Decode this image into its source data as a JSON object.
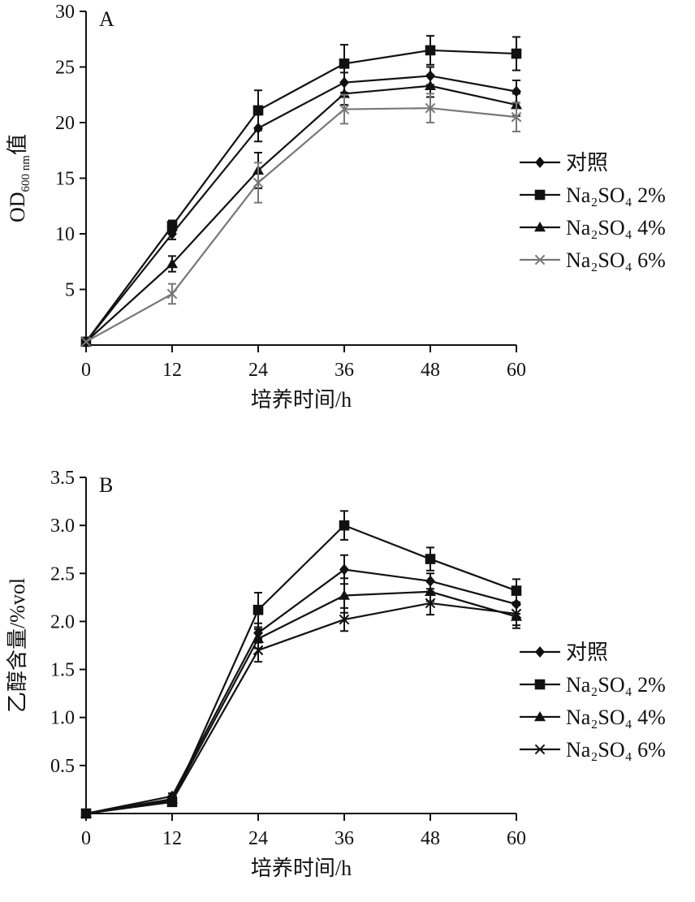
{
  "chart_data": [
    {
      "type": "line",
      "panel_label": "A",
      "title": "",
      "xlabel": "培养时间/h",
      "ylabel": {
        "main": "OD",
        "sub": "600 nm",
        "suffix": "值"
      },
      "x": [
        0,
        12,
        24,
        36,
        48,
        60
      ],
      "xticks": [
        "0",
        "12",
        "24",
        "36",
        "48",
        "60"
      ],
      "xlim": [
        0,
        60
      ],
      "ylim": [
        0,
        30
      ],
      "yticks": [
        5,
        10,
        15,
        20,
        25,
        30
      ],
      "ytick_labels": [
        "5",
        "10",
        "15",
        "20",
        "25",
        "30"
      ],
      "grid": false,
      "legend_position": "right",
      "series": [
        {
          "name": "对照",
          "marker": "diamond",
          "color": "#111111",
          "values": [
            0.3,
            10.0,
            19.5,
            23.6,
            24.2,
            22.8
          ],
          "errors": [
            0,
            0.5,
            1.2,
            0.9,
            0.8,
            1.0
          ]
        },
        {
          "name": "Na₂SO₄ 2%",
          "marker": "square",
          "color": "#111111",
          "values": [
            0.3,
            10.7,
            21.1,
            25.3,
            26.5,
            26.2
          ],
          "errors": [
            0,
            0.5,
            1.8,
            1.7,
            1.3,
            1.5
          ]
        },
        {
          "name": "Na₂SO₄ 4%",
          "marker": "triangle",
          "color": "#111111",
          "values": [
            0.3,
            7.3,
            15.7,
            22.6,
            23.3,
            21.6
          ],
          "errors": [
            0,
            0.7,
            1.6,
            1.0,
            1.0,
            1.0
          ]
        },
        {
          "name": "Na₂SO₄ 6%",
          "marker": "cross",
          "color": "#777777",
          "values": [
            0.3,
            4.6,
            14.6,
            21.2,
            21.3,
            20.5
          ],
          "errors": [
            0,
            0.9,
            1.8,
            1.3,
            1.3,
            1.3
          ]
        }
      ]
    },
    {
      "type": "line",
      "panel_label": "B",
      "title": "",
      "xlabel": "培养时间/h",
      "ylabel": {
        "main": "乙醇含量/%vol",
        "sub": "",
        "suffix": ""
      },
      "x": [
        0,
        12,
        24,
        36,
        48,
        60
      ],
      "xticks": [
        "0",
        "12",
        "24",
        "36",
        "48",
        "60"
      ],
      "xlim": [
        0,
        60
      ],
      "ylim": [
        0,
        3.5
      ],
      "yticks": [
        0.5,
        1.0,
        1.5,
        2.0,
        2.5,
        3.0,
        3.5
      ],
      "ytick_labels": [
        "0.5",
        "1.0",
        "1.5",
        "2.0",
        "2.5",
        "3.0",
        "3.5"
      ],
      "grid": false,
      "legend_position": "right",
      "series": [
        {
          "name": "对照",
          "marker": "diamond",
          "color": "#111111",
          "values": [
            0,
            0.18,
            1.88,
            2.54,
            2.42,
            2.18
          ],
          "errors": [
            0,
            0.03,
            0.1,
            0.15,
            0.08,
            0.1
          ]
        },
        {
          "name": "Na₂SO₄ 2%",
          "marker": "square",
          "color": "#111111",
          "values": [
            0,
            0.12,
            2.12,
            3.0,
            2.65,
            2.32
          ],
          "errors": [
            0,
            0.03,
            0.18,
            0.15,
            0.12,
            0.12
          ]
        },
        {
          "name": "Na₂SO₄ 4%",
          "marker": "triangle",
          "color": "#111111",
          "values": [
            0,
            0.15,
            1.82,
            2.27,
            2.31,
            2.05
          ],
          "errors": [
            0,
            0.03,
            0.1,
            0.18,
            0.1,
            0.12
          ]
        },
        {
          "name": "Na₂SO₄ 6%",
          "marker": "cross",
          "color": "#111111",
          "values": [
            0,
            0.13,
            1.7,
            2.02,
            2.19,
            2.08
          ],
          "errors": [
            0,
            0.03,
            0.12,
            0.12,
            0.12,
            0.12
          ]
        }
      ]
    }
  ]
}
